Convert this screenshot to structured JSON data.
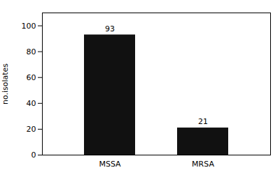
{
  "chart_data": {
    "type": "bar",
    "categories": [
      "MSSA",
      "MRSA"
    ],
    "values": [
      93,
      21
    ],
    "color": "#111111",
    "ylabel": "no.isolates",
    "ylim": [
      0,
      110
    ],
    "yticks": [
      0,
      20,
      40,
      60,
      80,
      100
    ],
    "grid": false,
    "data_labels": true
  }
}
